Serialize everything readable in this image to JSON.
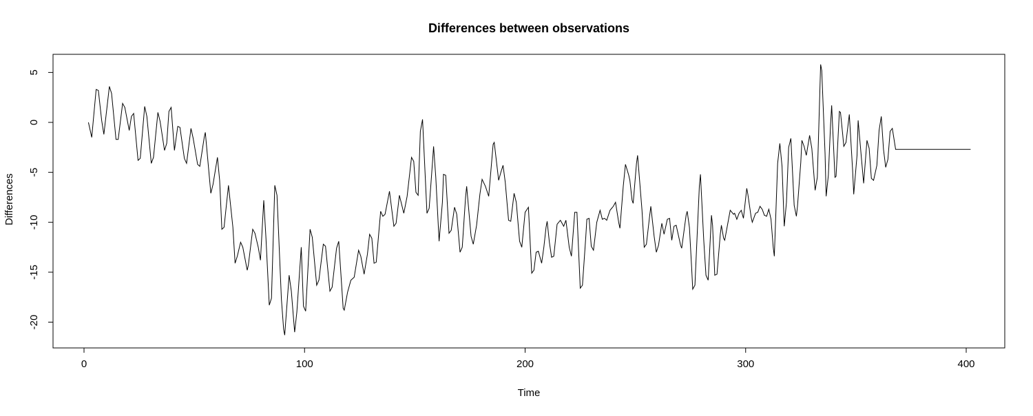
{
  "chart_data": {
    "type": "line",
    "title": "Differences between observations",
    "xlabel": "Time",
    "ylabel": "Differences",
    "xlim": [
      2,
      402
    ],
    "ylim": [
      -21.3,
      5.8
    ],
    "x_ticks": [
      0,
      100,
      200,
      300,
      400
    ],
    "y_ticks": [
      5,
      0,
      -5,
      -10,
      -15,
      -20
    ],
    "x_tick_labels": [
      "0",
      "100",
      "200",
      "300",
      "400"
    ],
    "y_tick_labels": [
      "5",
      "0",
      "-5",
      "-10",
      "-15",
      "-20"
    ],
    "grid": false,
    "legend": "none",
    "line_color": "#000000",
    "series": [
      {
        "x": [
          2,
          402
        ],
        "anchors": [
          [
            2,
            0.0
          ],
          [
            3.5,
            -1.5
          ],
          [
            5.5,
            3.3
          ],
          [
            6.5,
            3.2
          ],
          [
            8,
            0.2
          ],
          [
            9,
            -1.2
          ],
          [
            11.5,
            3.6
          ],
          [
            12.5,
            2.9
          ],
          [
            14.5,
            -1.7
          ],
          [
            15.5,
            -1.7
          ],
          [
            17.5,
            1.9
          ],
          [
            18.5,
            1.5
          ],
          [
            20.5,
            -0.8
          ],
          [
            21.5,
            0.6
          ],
          [
            22.5,
            0.9
          ],
          [
            24.5,
            -3.8
          ],
          [
            25.5,
            -3.6
          ],
          [
            27.5,
            1.6
          ],
          [
            28.5,
            0.6
          ],
          [
            30.5,
            -4.1
          ],
          [
            31.5,
            -3.5
          ],
          [
            33.5,
            1.0
          ],
          [
            34.5,
            0.1
          ],
          [
            36.5,
            -2.8
          ],
          [
            37.5,
            -2.1
          ],
          [
            38.5,
            1.1
          ],
          [
            39.5,
            1.5
          ],
          [
            41,
            -2.8
          ],
          [
            42.5,
            -0.4
          ],
          [
            43.5,
            -0.5
          ],
          [
            45.5,
            -3.6
          ],
          [
            46.5,
            -4.1
          ],
          [
            48.5,
            -0.6
          ],
          [
            49.5,
            -1.6
          ],
          [
            51.5,
            -4.2
          ],
          [
            52.5,
            -4.4
          ],
          [
            54.5,
            -1.5
          ],
          [
            55,
            -1.0
          ],
          [
            57.5,
            -7.1
          ],
          [
            58.5,
            -6.2
          ],
          [
            60.5,
            -3.5
          ],
          [
            61.5,
            -5.8
          ],
          [
            62.5,
            -10.7
          ],
          [
            63.5,
            -10.5
          ],
          [
            65.5,
            -6.3
          ],
          [
            67.5,
            -10.5
          ],
          [
            68.5,
            -14.1
          ],
          [
            69.5,
            -13.4
          ],
          [
            71,
            -12.0
          ],
          [
            72,
            -12.5
          ],
          [
            74,
            -14.8
          ],
          [
            74.5,
            -14.3
          ],
          [
            76.5,
            -10.7
          ],
          [
            77.5,
            -11.1
          ],
          [
            79,
            -12.5
          ],
          [
            80,
            -13.8
          ],
          [
            81.5,
            -7.8
          ],
          [
            82.5,
            -11.6
          ],
          [
            84,
            -18.3
          ],
          [
            85,
            -17.6
          ],
          [
            86.5,
            -6.3
          ],
          [
            87.5,
            -7.3
          ],
          [
            89.5,
            -17.7
          ],
          [
            90.5,
            -20.7
          ],
          [
            91,
            -21.3
          ],
          [
            93,
            -15.3
          ],
          [
            94,
            -16.9
          ],
          [
            95.5,
            -21.0
          ],
          [
            96.5,
            -19.0
          ],
          [
            98.5,
            -12.5
          ],
          [
            99.5,
            -18.4
          ],
          [
            100.5,
            -18.9
          ],
          [
            102.5,
            -10.7
          ],
          [
            103.5,
            -11.5
          ],
          [
            105.5,
            -16.3
          ],
          [
            106.5,
            -15.8
          ],
          [
            108.5,
            -12.2
          ],
          [
            109.5,
            -12.4
          ],
          [
            111.5,
            -16.9
          ],
          [
            112.5,
            -16.5
          ],
          [
            114.5,
            -12.6
          ],
          [
            115.5,
            -11.9
          ],
          [
            117.5,
            -18.6
          ],
          [
            118,
            -18.8
          ],
          [
            119.5,
            -17.0
          ],
          [
            121,
            -15.8
          ],
          [
            122.5,
            -15.5
          ],
          [
            124.5,
            -12.8
          ],
          [
            125.5,
            -13.4
          ],
          [
            127,
            -15.2
          ],
          [
            128.5,
            -13.2
          ],
          [
            129.5,
            -11.2
          ],
          [
            130.5,
            -11.6
          ],
          [
            131.5,
            -14.1
          ],
          [
            132.5,
            -14.0
          ],
          [
            134.5,
            -8.9
          ],
          [
            135.5,
            -9.4
          ],
          [
            136.5,
            -9.2
          ],
          [
            138.5,
            -6.9
          ],
          [
            140.5,
            -10.4
          ],
          [
            141.5,
            -10.1
          ],
          [
            143,
            -7.3
          ],
          [
            145,
            -9.1
          ],
          [
            146.5,
            -7.4
          ],
          [
            148.5,
            -3.5
          ],
          [
            149.5,
            -3.9
          ],
          [
            150.5,
            -7.0
          ],
          [
            151.5,
            -7.3
          ],
          [
            152.5,
            -0.9
          ],
          [
            153.5,
            0.3
          ],
          [
            155.5,
            -9.1
          ],
          [
            156.5,
            -8.6
          ],
          [
            158,
            -4.0
          ],
          [
            158.5,
            -2.4
          ],
          [
            159.5,
            -5.5
          ],
          [
            161,
            -11.9
          ],
          [
            162.5,
            -8.0
          ],
          [
            163,
            -5.2
          ],
          [
            164,
            -5.3
          ],
          [
            165.5,
            -11.1
          ],
          [
            166.5,
            -10.8
          ],
          [
            168,
            -8.5
          ],
          [
            169,
            -9.2
          ],
          [
            170.5,
            -13.0
          ],
          [
            171.5,
            -12.5
          ],
          [
            173,
            -7.5
          ],
          [
            173.5,
            -6.4
          ],
          [
            175.5,
            -11.4
          ],
          [
            176.5,
            -12.2
          ],
          [
            178,
            -10.3
          ],
          [
            179.5,
            -7.2
          ],
          [
            180.5,
            -5.7
          ],
          [
            182,
            -6.4
          ],
          [
            183.5,
            -7.4
          ],
          [
            185.5,
            -2.2
          ],
          [
            186,
            -2.0
          ],
          [
            188,
            -5.8
          ],
          [
            189,
            -5.0
          ],
          [
            190,
            -4.3
          ],
          [
            191,
            -6.0
          ],
          [
            192.5,
            -9.8
          ],
          [
            193.5,
            -9.9
          ],
          [
            195,
            -7.1
          ],
          [
            196,
            -8.0
          ],
          [
            197.5,
            -11.9
          ],
          [
            198.5,
            -12.5
          ],
          [
            200,
            -9.0
          ],
          [
            201.5,
            -8.5
          ],
          [
            203,
            -15.1
          ],
          [
            204,
            -14.8
          ],
          [
            205,
            -13.0
          ],
          [
            206,
            -12.9
          ],
          [
            207.5,
            -14.1
          ],
          [
            208.5,
            -12.5
          ],
          [
            209.5,
            -10.5
          ],
          [
            210,
            -9.9
          ],
          [
            211,
            -12.0
          ],
          [
            212,
            -13.5
          ],
          [
            213,
            -13.4
          ],
          [
            214.5,
            -10.2
          ],
          [
            216,
            -9.8
          ],
          [
            217.5,
            -10.4
          ],
          [
            218.5,
            -9.8
          ],
          [
            220,
            -12.5
          ],
          [
            221,
            -13.4
          ],
          [
            222.5,
            -9.0
          ],
          [
            223.5,
            -9.0
          ],
          [
            225,
            -16.6
          ],
          [
            226,
            -16.3
          ],
          [
            227.5,
            -11.5
          ],
          [
            228,
            -9.7
          ],
          [
            229,
            -9.6
          ],
          [
            230,
            -12.4
          ],
          [
            231,
            -12.8
          ],
          [
            232.5,
            -10.0
          ],
          [
            234,
            -8.8
          ],
          [
            235,
            -9.7
          ],
          [
            236,
            -9.6
          ],
          [
            237,
            -9.8
          ],
          [
            238.5,
            -8.8
          ],
          [
            240,
            -8.4
          ],
          [
            241,
            -8.0
          ],
          [
            242.5,
            -10.1
          ],
          [
            243,
            -10.6
          ],
          [
            244.5,
            -6.4
          ],
          [
            245.5,
            -4.2
          ],
          [
            247,
            -5.3
          ],
          [
            247.5,
            -5.8
          ],
          [
            248.5,
            -7.8
          ],
          [
            249,
            -8.1
          ],
          [
            250.5,
            -4.1
          ],
          [
            251,
            -3.3
          ],
          [
            253,
            -8.8
          ],
          [
            254,
            -12.5
          ],
          [
            255,
            -12.2
          ],
          [
            256.5,
            -9.3
          ],
          [
            257,
            -8.4
          ],
          [
            258.5,
            -11.4
          ],
          [
            259.5,
            -13.0
          ],
          [
            260.5,
            -12.3
          ],
          [
            262,
            -10.1
          ],
          [
            263,
            -11.2
          ],
          [
            264.5,
            -9.7
          ],
          [
            265.5,
            -9.6
          ],
          [
            266.5,
            -11.8
          ],
          [
            267.5,
            -10.4
          ],
          [
            268.5,
            -10.3
          ],
          [
            270.5,
            -12.3
          ],
          [
            271,
            -12.6
          ],
          [
            273,
            -9.3
          ],
          [
            273.5,
            -8.9
          ],
          [
            274.5,
            -10.5
          ],
          [
            275.5,
            -14.5
          ],
          [
            276,
            -16.7
          ],
          [
            277,
            -16.3
          ],
          [
            279,
            -6.4
          ],
          [
            279.5,
            -5.2
          ],
          [
            281,
            -11.8
          ],
          [
            282,
            -15.3
          ],
          [
            283,
            -15.8
          ],
          [
            284.5,
            -9.3
          ],
          [
            285,
            -10.3
          ],
          [
            286,
            -15.3
          ],
          [
            287,
            -15.2
          ],
          [
            288.5,
            -11.2
          ],
          [
            289,
            -10.3
          ],
          [
            290,
            -11.6
          ],
          [
            290.5,
            -11.8
          ],
          [
            292,
            -10.0
          ],
          [
            293,
            -8.8
          ],
          [
            294.5,
            -9.2
          ],
          [
            295,
            -9.1
          ],
          [
            296,
            -9.7
          ],
          [
            297,
            -9.1
          ],
          [
            298,
            -8.8
          ],
          [
            299,
            -9.6
          ],
          [
            300.5,
            -6.6
          ],
          [
            301,
            -7.2
          ],
          [
            302.5,
            -9.5
          ],
          [
            303,
            -10.0
          ],
          [
            304.5,
            -9.1
          ],
          [
            305.5,
            -9.0
          ],
          [
            306.5,
            -8.4
          ],
          [
            307.5,
            -8.7
          ],
          [
            308.5,
            -9.3
          ],
          [
            309.5,
            -9.4
          ],
          [
            310.5,
            -8.7
          ],
          [
            311.5,
            -9.7
          ],
          [
            312.5,
            -12.5
          ],
          [
            313,
            -13.4
          ],
          [
            314.5,
            -4.1
          ],
          [
            315.5,
            -2.1
          ],
          [
            316.5,
            -4.4
          ],
          [
            317.5,
            -10.4
          ],
          [
            318.5,
            -8.0
          ],
          [
            319.5,
            -2.5
          ],
          [
            320.5,
            -1.6
          ],
          [
            322,
            -8.3
          ],
          [
            323,
            -9.4
          ],
          [
            323.5,
            -8.4
          ],
          [
            325,
            -4.0
          ],
          [
            325.5,
            -1.8
          ],
          [
            326.5,
            -2.4
          ],
          [
            327.5,
            -3.3
          ],
          [
            329,
            -1.3
          ],
          [
            330,
            -2.6
          ],
          [
            331.5,
            -6.8
          ],
          [
            332.5,
            -5.5
          ],
          [
            334,
            5.8
          ],
          [
            334.5,
            5.2
          ],
          [
            336,
            -3.1
          ],
          [
            336.5,
            -7.4
          ],
          [
            337.5,
            -5.3
          ],
          [
            338.5,
            -0.2
          ],
          [
            339,
            1.7
          ],
          [
            340.5,
            -5.5
          ],
          [
            341,
            -5.4
          ],
          [
            342.5,
            1.1
          ],
          [
            343,
            1.0
          ],
          [
            344,
            -1.2
          ],
          [
            344.5,
            -2.4
          ],
          [
            345.5,
            -2.0
          ],
          [
            347,
            0.8
          ],
          [
            348.5,
            -4.8
          ],
          [
            349,
            -7.2
          ],
          [
            350.5,
            -3.3
          ],
          [
            351,
            0.2
          ],
          [
            352.5,
            -3.6
          ],
          [
            353.5,
            -6.1
          ],
          [
            355,
            -1.8
          ],
          [
            356,
            -2.6
          ],
          [
            357,
            -5.6
          ],
          [
            358,
            -5.8
          ],
          [
            359.5,
            -4.3
          ],
          [
            360.5,
            -0.8
          ],
          [
            361.5,
            0.6
          ],
          [
            362.5,
            -2.7
          ],
          [
            363.5,
            -4.5
          ],
          [
            364.5,
            -3.7
          ],
          [
            365.5,
            -0.9
          ],
          [
            366.5,
            -0.6
          ],
          [
            368,
            -2.7
          ]
        ]
      }
    ]
  }
}
